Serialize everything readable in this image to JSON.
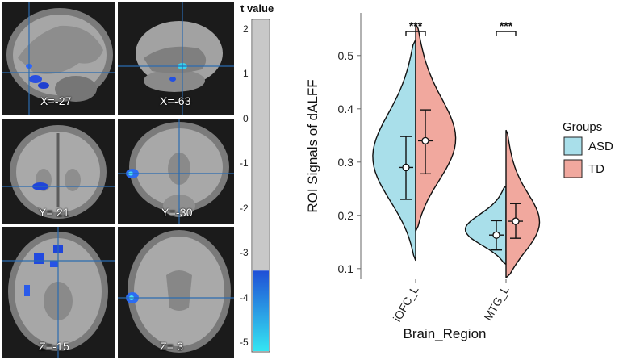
{
  "brain_panels": [
    {
      "label": "X=-27",
      "view": "sagittal"
    },
    {
      "label": "X=-63",
      "view": "sagittal-lateral"
    },
    {
      "label": "Y= 21",
      "view": "coronal-frontal"
    },
    {
      "label": "Y=-30",
      "view": "coronal"
    },
    {
      "label": "Z=-15",
      "view": "axial-low"
    },
    {
      "label": "Z= 3",
      "view": "axial"
    }
  ],
  "colorbar": {
    "title": "t value",
    "ticks": [
      "2",
      "1",
      "0",
      "-1",
      "-2",
      "-3",
      "-4",
      "-5"
    ],
    "range": [
      2.2,
      -5.2
    ],
    "gray_until": -3.4,
    "colors": {
      "gray": "#c8c8c8",
      "blue_top": "#1f4fd6",
      "cyan_bottom": "#35e6f2"
    }
  },
  "chart_data": {
    "type": "violin",
    "xlabel": "Brain_Region",
    "ylabel": "ROI Signals of dALFF",
    "categories": [
      "iOFC_L",
      "MTG_L"
    ],
    "yticks": [
      "0.1",
      "0.2",
      "0.3",
      "0.4",
      "0.5"
    ],
    "ylim": [
      0.08,
      0.58
    ],
    "legend": {
      "title": "Groups",
      "placement": "right"
    },
    "series": [
      {
        "name": "ASD",
        "color": "#a9dfea",
        "stats": [
          {
            "mean": 0.29,
            "lo": 0.23,
            "hi": 0.348
          },
          {
            "mean": 0.163,
            "lo": 0.135,
            "hi": 0.19
          }
        ],
        "range": [
          [
            0.115,
            0.53
          ],
          [
            0.108,
            0.255
          ]
        ]
      },
      {
        "name": "TD",
        "color": "#f1a89e",
        "stats": [
          {
            "mean": 0.34,
            "lo": 0.278,
            "hi": 0.398
          },
          {
            "mean": 0.189,
            "lo": 0.157,
            "hi": 0.222
          }
        ],
        "range": [
          [
            0.17,
            0.56
          ],
          [
            0.083,
            0.36
          ]
        ]
      }
    ],
    "significance": [
      "***",
      "***"
    ]
  }
}
